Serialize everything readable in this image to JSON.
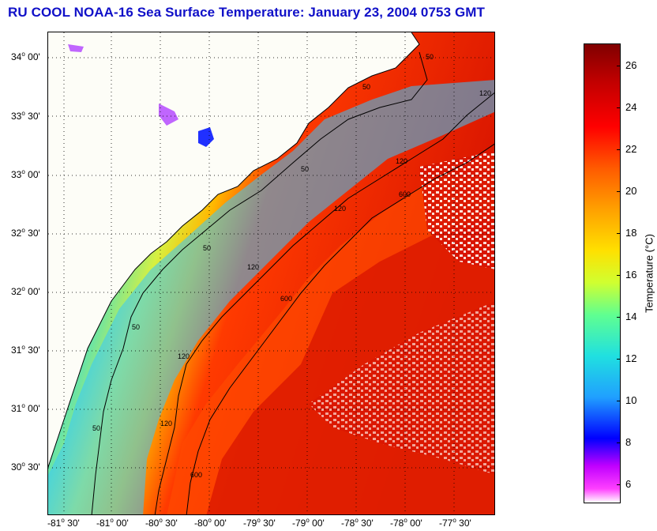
{
  "title": "RU COOL  NOAA-16  Sea Surface Temperature:  January 23, 2004 0753 GMT",
  "map": {
    "lat_labels": [
      "34",
      "33",
      "33",
      "32",
      "32",
      "31",
      "31",
      "30"
    ],
    "lat_minutes": [
      "00'",
      "30'",
      "00'",
      "30'",
      "00'",
      "30'",
      "00'",
      "30'"
    ],
    "lon_labels": [
      "-81",
      "-81",
      "-80",
      "-80",
      "-79",
      "-79",
      "-78",
      "-78",
      "-77"
    ],
    "lon_minutes": [
      "30'",
      "00'",
      "30'",
      "00'",
      "30'",
      "00'",
      "30'",
      "00'",
      "30'"
    ],
    "contour_labels": [
      "50",
      "50",
      "50",
      "50",
      "50",
      "50",
      "120",
      "120",
      "120",
      "120",
      "120",
      "120",
      "600",
      "600",
      "600"
    ],
    "colors": {
      "land": "#fdfdf7",
      "title": "#1010c8"
    }
  },
  "colorbar": {
    "label": "Temperature (°C)",
    "ticks": [
      "26",
      "24",
      "22",
      "20",
      "18",
      "16",
      "14",
      "12",
      "10",
      "8",
      "6"
    ],
    "range": [
      5,
      27
    ]
  }
}
